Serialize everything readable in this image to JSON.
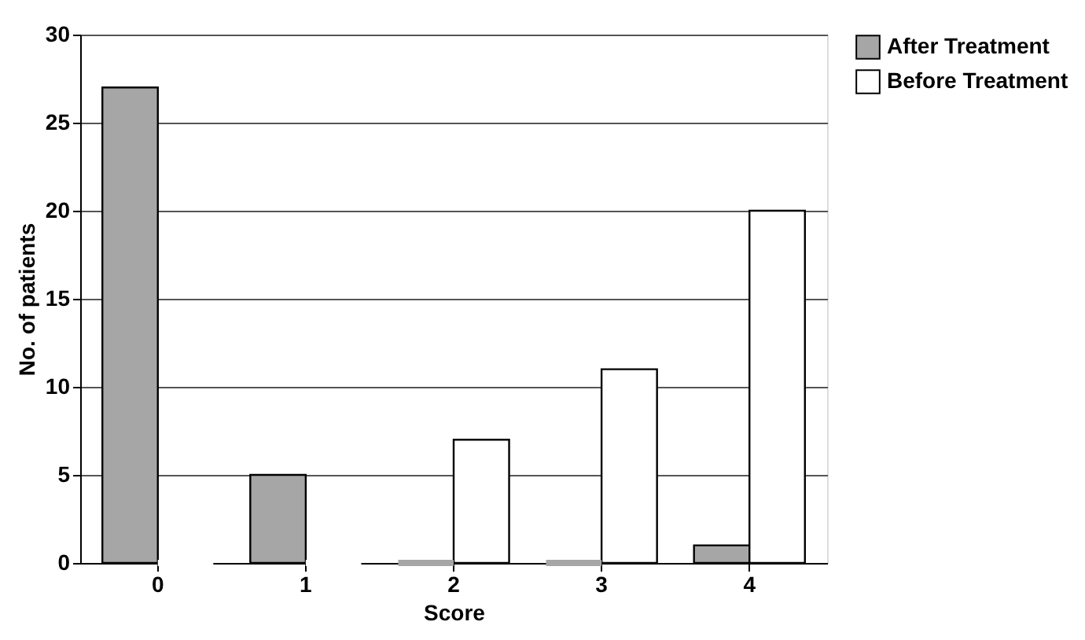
{
  "chart_data": {
    "type": "bar",
    "categories": [
      "0",
      "1",
      "2",
      "3",
      "4"
    ],
    "series": [
      {
        "name": "After Treatment",
        "color": "#a6a6a6",
        "values": [
          27,
          5,
          0,
          0,
          1
        ]
      },
      {
        "name": "Before Treatment",
        "color": "#ffffff",
        "values": [
          0,
          0,
          7,
          11,
          20
        ]
      }
    ],
    "xlabel": "Score",
    "ylabel": "No. of patients",
    "ylim": [
      0,
      30
    ],
    "yticks": [
      0,
      5,
      10,
      15,
      20,
      25,
      30
    ],
    "grid": "y",
    "legend": "right"
  }
}
